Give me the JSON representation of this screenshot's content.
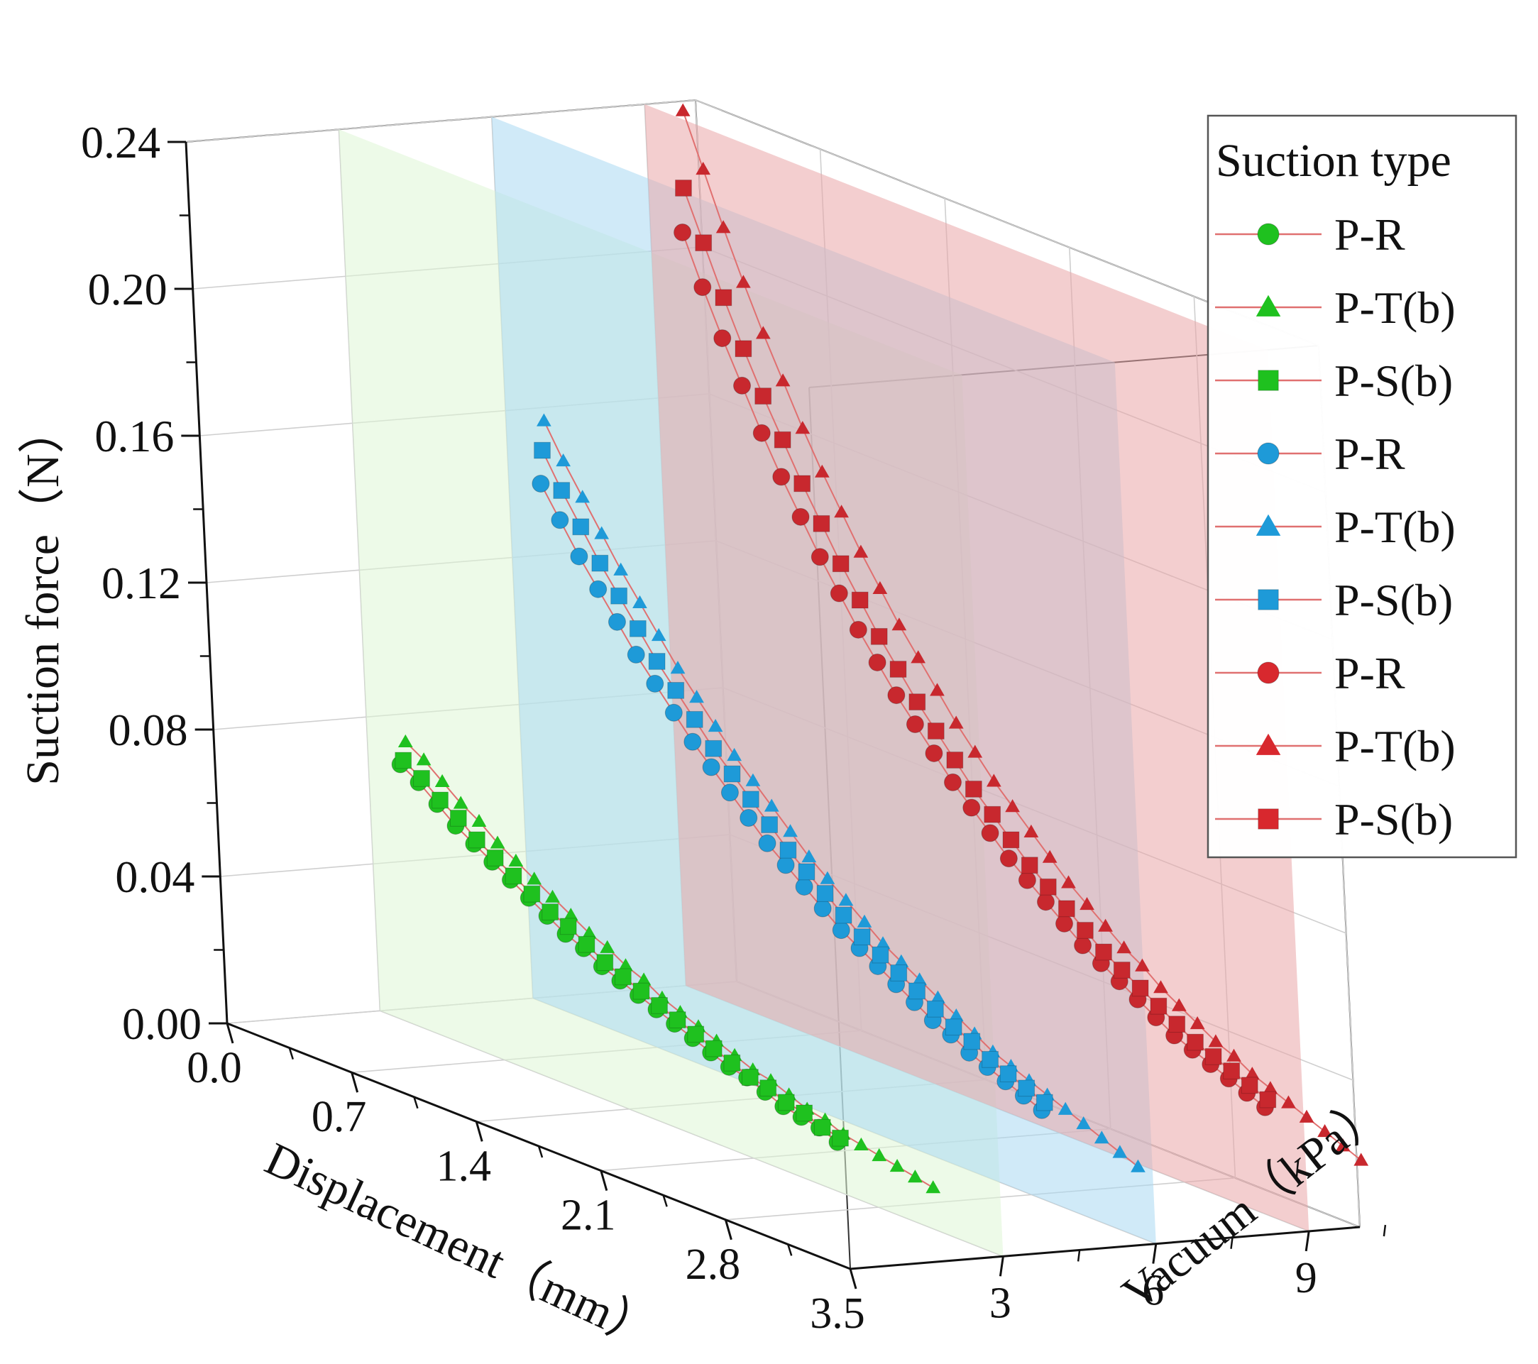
{
  "colors": {
    "green": "#1fc11f",
    "blue": "#1e9ad8",
    "red": "#c8282e",
    "green_plane": "#dff6d6",
    "blue_plane": "#a9d8f2",
    "red_plane": "#e9a5a8",
    "connector": "#e07070"
  },
  "legend": {
    "title": "Suction type",
    "items": [
      {
        "label": "P-R",
        "marker": "circle",
        "color": "#1fc11f"
      },
      {
        "label": "P-T(b)",
        "marker": "triangle",
        "color": "#1fc11f"
      },
      {
        "label": "P-S(b)",
        "marker": "square",
        "color": "#1fc11f"
      },
      {
        "label": "P-R",
        "marker": "circle",
        "color": "#1e9ad8"
      },
      {
        "label": "P-T(b)",
        "marker": "triangle",
        "color": "#1e9ad8"
      },
      {
        "label": "P-S(b)",
        "marker": "square",
        "color": "#1e9ad8"
      },
      {
        "label": "P-R",
        "marker": "circle",
        "color": "#d8282e"
      },
      {
        "label": "P-T(b)",
        "marker": "triangle",
        "color": "#d8282e"
      },
      {
        "label": "P-S(b)",
        "marker": "square",
        "color": "#d8282e"
      }
    ]
  },
  "chart_data": {
    "type": "scatter3d",
    "title": "",
    "xlabel": "Displacement（mm）",
    "ylabel": "Vacuum（kPa）",
    "zlabel": "Suction force（N）",
    "xlim": [
      0,
      3.5
    ],
    "ylim": [
      0,
      10
    ],
    "zlim": [
      0,
      0.24
    ],
    "x_ticks": [
      "0.0",
      "0.7",
      "1.4",
      "2.1",
      "2.8",
      "3.5"
    ],
    "y_ticks": [
      "3",
      "6",
      "9"
    ],
    "z_ticks": [
      "0.00",
      "0.04",
      "0.08",
      "0.12",
      "0.16",
      "0.20",
      "0.24"
    ],
    "x_tick_values": [
      0,
      0.7,
      1.4,
      2.1,
      2.8,
      3.5
    ],
    "y_tick_values": [
      3,
      6,
      9
    ],
    "z_tick_values": [
      0,
      0.04,
      0.08,
      0.12,
      0.16,
      0.2,
      0.24
    ],
    "displacement_start_mm": 0.2,
    "displacement_step_mm": 0.1,
    "series": [
      {
        "name": "P-R",
        "vacuum_kPa": 3,
        "marker": "circle",
        "color": "#1fc11f",
        "values": [
          0.071,
          0.068,
          0.064,
          0.06,
          0.057,
          0.054,
          0.051,
          0.048,
          0.045,
          0.042,
          0.04,
          0.037,
          0.035,
          0.033,
          0.031,
          0.029,
          0.027,
          0.025,
          0.023,
          0.022,
          0.02,
          0.018,
          0.017,
          0.016,
          0.014
        ]
      },
      {
        "name": "P-T(b)",
        "vacuum_kPa": 3,
        "marker": "triangle",
        "color": "#1fc11f",
        "values": [
          0.077,
          0.074,
          0.07,
          0.066,
          0.063,
          0.059,
          0.056,
          0.053,
          0.05,
          0.047,
          0.044,
          0.042,
          0.039,
          0.037,
          0.034,
          0.032,
          0.03,
          0.028,
          0.026,
          0.024,
          0.023,
          0.021,
          0.019,
          0.018,
          0.016,
          0.015,
          0.014,
          0.013,
          0.012,
          0.011
        ]
      },
      {
        "name": "P-S(b)",
        "vacuum_kPa": 3,
        "marker": "square",
        "color": "#1fc11f",
        "values": [
          0.072,
          0.069,
          0.065,
          0.062,
          0.058,
          0.055,
          0.052,
          0.049,
          0.046,
          0.044,
          0.041,
          0.038,
          0.036,
          0.034,
          0.032,
          0.03,
          0.028,
          0.026,
          0.024,
          0.022,
          0.021,
          0.019,
          0.018,
          0.016,
          0.015
        ]
      },
      {
        "name": "P-R",
        "vacuum_kPa": 6,
        "marker": "circle",
        "color": "#1e9ad8",
        "values": [
          0.144,
          0.136,
          0.128,
          0.121,
          0.114,
          0.107,
          0.101,
          0.095,
          0.089,
          0.084,
          0.079,
          0.074,
          0.069,
          0.065,
          0.061,
          0.057,
          0.053,
          0.05,
          0.047,
          0.044,
          0.041,
          0.038,
          0.036,
          0.033,
          0.031,
          0.029,
          0.027,
          0.025
        ]
      },
      {
        "name": "P-T(b)",
        "vacuum_kPa": 6,
        "marker": "triangle",
        "color": "#1e9ad8",
        "values": [
          0.161,
          0.152,
          0.144,
          0.136,
          0.128,
          0.121,
          0.114,
          0.107,
          0.101,
          0.095,
          0.089,
          0.084,
          0.079,
          0.074,
          0.069,
          0.065,
          0.061,
          0.057,
          0.053,
          0.05,
          0.047,
          0.044,
          0.041,
          0.038,
          0.035,
          0.033,
          0.031,
          0.029,
          0.027,
          0.025,
          0.023,
          0.021,
          0.019
        ]
      },
      {
        "name": "P-S(b)",
        "vacuum_kPa": 6,
        "marker": "square",
        "color": "#1e9ad8",
        "values": [
          0.153,
          0.144,
          0.136,
          0.128,
          0.121,
          0.114,
          0.107,
          0.101,
          0.095,
          0.089,
          0.084,
          0.079,
          0.074,
          0.069,
          0.065,
          0.061,
          0.057,
          0.053,
          0.05,
          0.047,
          0.044,
          0.041,
          0.038,
          0.036,
          0.033,
          0.031,
          0.029,
          0.027
        ]
      },
      {
        "name": "P-R",
        "vacuum_kPa": 9,
        "marker": "circle",
        "color": "#c8282e",
        "values": [
          0.209,
          0.196,
          0.184,
          0.173,
          0.162,
          0.152,
          0.143,
          0.134,
          0.126,
          0.118,
          0.111,
          0.104,
          0.098,
          0.092,
          0.086,
          0.081,
          0.076,
          0.071,
          0.067,
          0.063,
          0.059,
          0.055,
          0.052,
          0.049,
          0.046,
          0.043,
          0.04,
          0.038,
          0.036,
          0.034,
          0.032,
          0.03
        ]
      },
      {
        "name": "P-T(b)",
        "vacuum_kPa": 9,
        "marker": "triangle",
        "color": "#c8282e",
        "values": [
          0.242,
          0.228,
          0.214,
          0.201,
          0.189,
          0.178,
          0.167,
          0.157,
          0.148,
          0.139,
          0.131,
          0.123,
          0.116,
          0.109,
          0.102,
          0.096,
          0.09,
          0.085,
          0.08,
          0.075,
          0.07,
          0.066,
          0.062,
          0.058,
          0.055,
          0.051,
          0.048,
          0.045,
          0.042,
          0.04,
          0.037,
          0.035,
          0.033,
          0.031,
          0.029,
          0.027,
          0.025
        ]
      },
      {
        "name": "P-S(b)",
        "vacuum_kPa": 9,
        "marker": "square",
        "color": "#c8282e",
        "values": [
          0.221,
          0.208,
          0.195,
          0.183,
          0.172,
          0.162,
          0.152,
          0.143,
          0.134,
          0.126,
          0.118,
          0.111,
          0.104,
          0.098,
          0.092,
          0.086,
          0.081,
          0.076,
          0.071,
          0.067,
          0.063,
          0.059,
          0.055,
          0.052,
          0.049,
          0.046,
          0.043,
          0.04,
          0.038,
          0.036,
          0.034,
          0.032
        ]
      }
    ]
  }
}
